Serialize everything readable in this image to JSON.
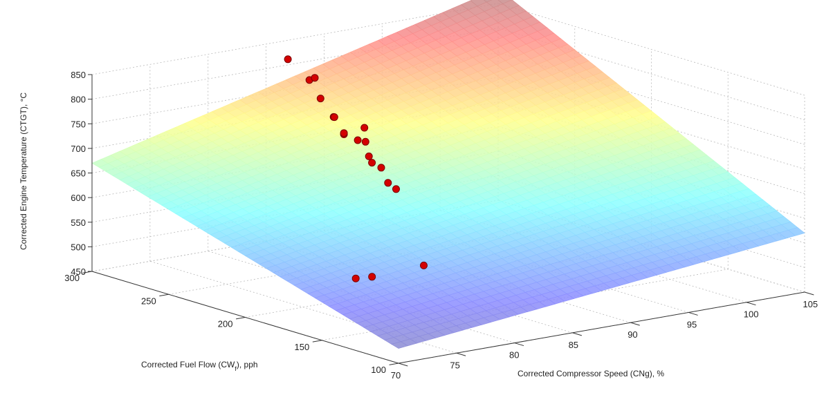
{
  "chart_data": {
    "type": "surface3d",
    "title": "",
    "xlabel": "Corrected Compressor Speed (CNg), %",
    "ylabel": "Corrected Fuel Flow (CW",
    "ylabel_sub": "f",
    "ylabel_suffix": "), pph",
    "zlabel": "Corrected Engine Temperature (CTGT), °C",
    "xlim": [
      70,
      105
    ],
    "ylim": [
      100,
      300
    ],
    "zlim": [
      450,
      850
    ],
    "xticks": [
      "70",
      "75",
      "80",
      "85",
      "90",
      "95",
      "100",
      "105"
    ],
    "yticks": [
      "100",
      "150",
      "200",
      "250",
      "300"
    ],
    "zticks": [
      "450",
      "500",
      "550",
      "600",
      "650",
      "700",
      "750",
      "800",
      "850"
    ],
    "grid": true,
    "colormap": "jet",
    "surface_corners": {
      "x70_y100": 480,
      "x105_y100": 570,
      "x70_y300": 670,
      "x105_y300": 880
    },
    "points": [
      {
        "x": 84.5,
        "y": 282,
        "z": 838
      },
      {
        "x": 85.3,
        "y": 274,
        "z": 800
      },
      {
        "x": 85.9,
        "y": 275,
        "z": 801
      },
      {
        "x": 85.6,
        "y": 269,
        "z": 766
      },
      {
        "x": 85.8,
        "y": 262,
        "z": 734
      },
      {
        "x": 86.0,
        "y": 263,
        "z": 732
      },
      {
        "x": 85.9,
        "y": 256,
        "z": 704
      },
      {
        "x": 85.5,
        "y": 253,
        "z": 711
      },
      {
        "x": 86.3,
        "y": 250,
        "z": 696
      },
      {
        "x": 86.7,
        "y": 248,
        "z": 693
      },
      {
        "x": 87.4,
        "y": 254,
        "z": 713
      },
      {
        "x": 86.2,
        "y": 242,
        "z": 671
      },
      {
        "x": 86.6,
        "y": 237,
        "z": 651
      },
      {
        "x": 86.2,
        "y": 240,
        "z": 660
      },
      {
        "x": 86.0,
        "y": 228,
        "z": 631
      },
      {
        "x": 86.3,
        "y": 225,
        "z": 620
      },
      {
        "x": 83.4,
        "y": 185,
        "z": 514
      },
      {
        "x": 79.6,
        "y": 190,
        "z": 502
      },
      {
        "x": 78.6,
        "y": 193,
        "z": 500
      }
    ]
  }
}
